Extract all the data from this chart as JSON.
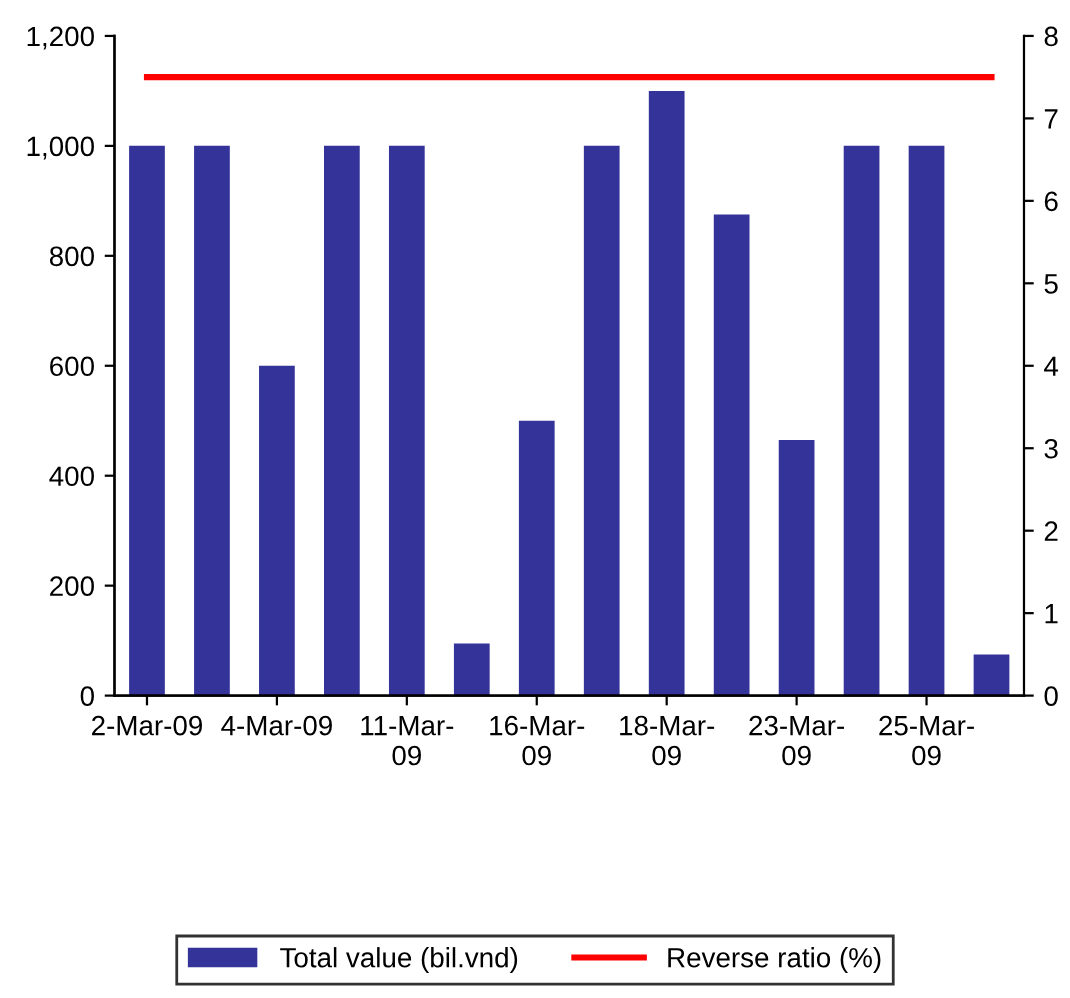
{
  "chart_data": {
    "type": "bar",
    "categories": [
      "2-Mar-09",
      null,
      "4-Mar-09",
      null,
      "11-Mar-09",
      null,
      "16-Mar-09",
      null,
      "18-Mar-09",
      null,
      "23-Mar-09",
      null,
      "25-Mar-09",
      null
    ],
    "series": [
      {
        "name": "Total value (bil.vnd)",
        "color": "#333399",
        "values": [
          1000,
          1000,
          600,
          1000,
          1000,
          95,
          500,
          1000,
          1100,
          875,
          465,
          1000,
          1000,
          75
        ]
      },
      {
        "name": "Reverse ratio (%)",
        "type": "line",
        "axis": "y2",
        "color": "#ff0000",
        "values": [
          7.5,
          7.5,
          7.5,
          7.5,
          7.5,
          7.5,
          7.5,
          7.5,
          7.5,
          7.5,
          7.5,
          7.5,
          7.5,
          7.5
        ]
      }
    ],
    "ylim": [
      0,
      1200
    ],
    "yticks": [
      0,
      200,
      400,
      600,
      800,
      {
        "value": 1000,
        "label": "1,000"
      },
      {
        "value": 1200,
        "label": "1,200"
      }
    ],
    "y2lim": [
      0,
      8
    ],
    "y2ticks": [
      0,
      1,
      2,
      3,
      4,
      5,
      6,
      7,
      8
    ],
    "grid": false,
    "legend": "bottom",
    "marker": "none",
    "line_style": "solid"
  }
}
